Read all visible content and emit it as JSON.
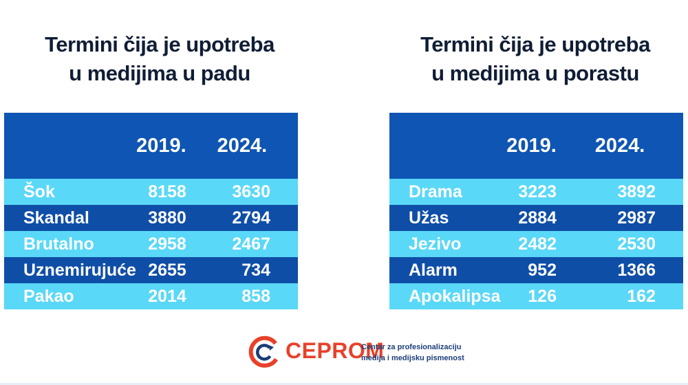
{
  "chart_data": [
    {
      "type": "table",
      "title_lines": [
        "Termini čija je upotreba",
        "u medijima u padu"
      ],
      "columns": [
        "2019.",
        "2024."
      ],
      "rows": [
        {
          "term": "Šok",
          "values": [
            "8158",
            "3630"
          ]
        },
        {
          "term": "Skandal",
          "values": [
            "3880",
            "2794"
          ]
        },
        {
          "term": "Brutalno",
          "values": [
            "2958",
            "2467"
          ]
        },
        {
          "term": "Uznemirujuće",
          "values": [
            "2655",
            "734"
          ]
        },
        {
          "term": "Pakao",
          "values": [
            "2014",
            "858"
          ]
        }
      ]
    },
    {
      "type": "table",
      "title_lines": [
        "Termini čija je upotreba",
        "u medijima u porastu"
      ],
      "columns": [
        "2019.",
        "2024."
      ],
      "rows": [
        {
          "term": "Drama",
          "values": [
            "3223",
            "3892"
          ]
        },
        {
          "term": "Užas",
          "values": [
            "2884",
            "2987"
          ]
        },
        {
          "term": "Jezivo",
          "values": [
            "2482",
            "2530"
          ]
        },
        {
          "term": "Alarm",
          "values": [
            "952",
            "1366"
          ]
        },
        {
          "term": "Apokalipsa",
          "values": [
            "126",
            "162"
          ]
        }
      ]
    }
  ],
  "logo": {
    "name": "CEPROM",
    "subtitle_lines": [
      "Centar za profesionalizaciju",
      "medija i medijsku pismenost"
    ],
    "accent_color": "#e8412b",
    "secondary_color": "#1a3d78"
  },
  "colors": {
    "header_bg": "#0f55b3",
    "row_light": "#5ad8f7",
    "row_dark": "#0f4ea7",
    "title_text": "#101d35"
  }
}
